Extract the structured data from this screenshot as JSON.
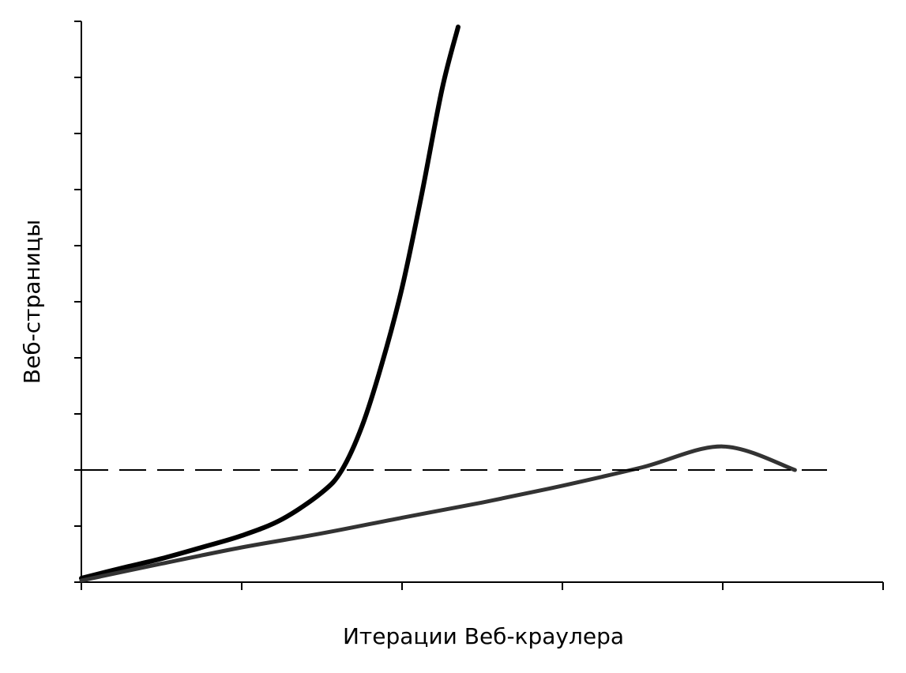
{
  "chart_data": {
    "type": "line",
    "title": "",
    "xlabel": "Итерации Веб-краулера",
    "ylabel": "Веб-страницы",
    "xlim": [
      0,
      10
    ],
    "ylim": [
      0,
      10
    ],
    "x_ticks": [
      0,
      2,
      4,
      6,
      8,
      10
    ],
    "y_ticks": [
      0,
      1,
      2,
      3,
      4,
      5,
      6,
      7,
      8,
      9,
      10
    ],
    "tick_labels_shown": false,
    "grid": false,
    "legend": "none",
    "series": [
      {
        "style": "solid-thick",
        "color": "#000000",
        "x": [
          0,
          0.5,
          1,
          1.5,
          2,
          2.5,
          3,
          3.25,
          3.5,
          3.75,
          4,
          4.25,
          4.5,
          4.7
        ],
        "y": [
          0.07,
          0.25,
          0.42,
          0.62,
          0.83,
          1.12,
          1.6,
          2.0,
          2.78,
          3.9,
          5.25,
          6.95,
          8.8,
          9.9
        ]
      },
      {
        "style": "solid",
        "color": "#333333",
        "x": [
          0,
          1,
          2,
          3,
          4,
          5,
          6,
          7,
          8,
          8.9
        ],
        "y": [
          0.03,
          0.33,
          0.62,
          0.87,
          1.15,
          1.42,
          1.72,
          2.05,
          2.42,
          2.0
        ]
      },
      {
        "style": "dashed",
        "color": "#000000",
        "x": [
          0,
          9.3
        ],
        "y": [
          2.0,
          2.0
        ]
      }
    ]
  }
}
